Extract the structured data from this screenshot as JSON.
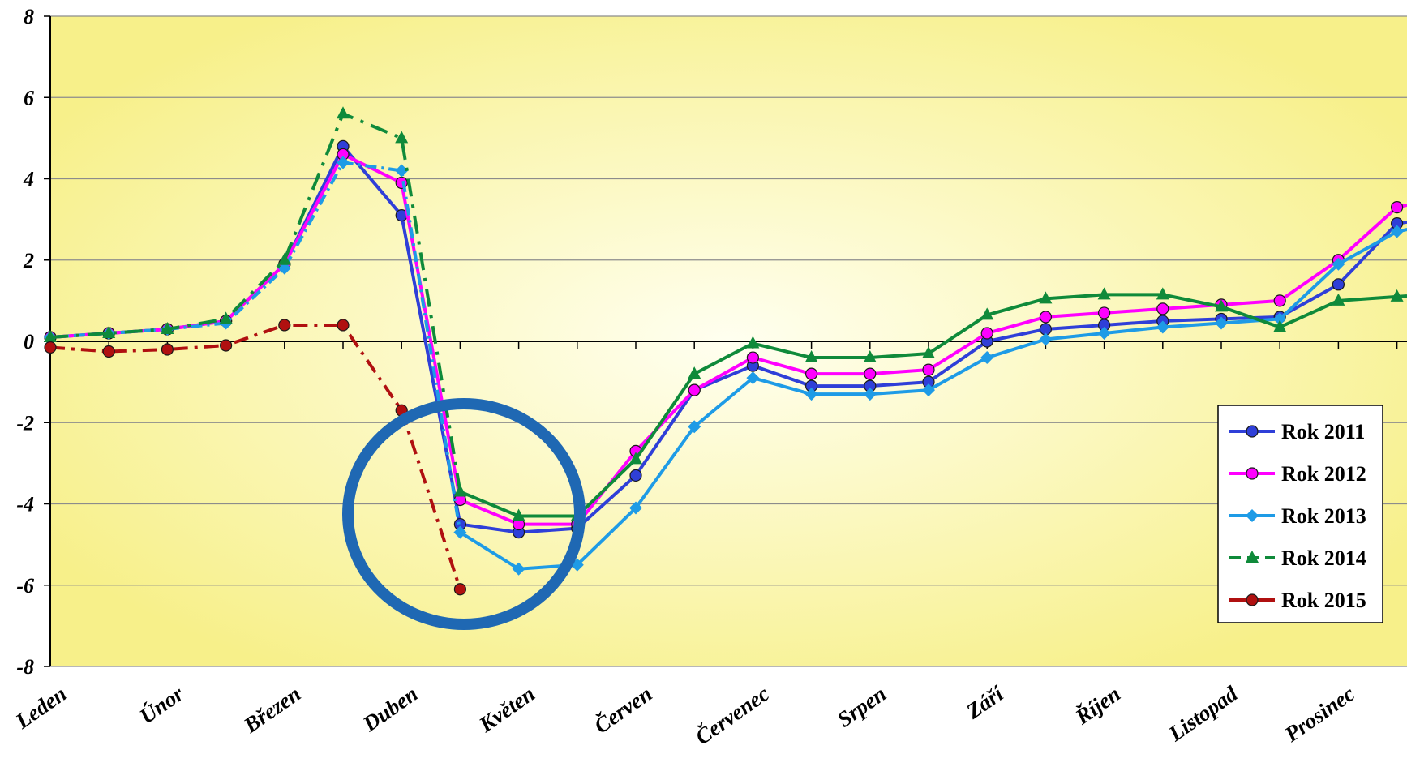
{
  "chart_data": {
    "type": "line",
    "x_ticks": [
      "Leden",
      "Únor",
      "Březen",
      "Duben",
      "Květen",
      "Červen",
      "Červenec",
      "Srpen",
      "Září",
      "Říjen",
      "Listopad",
      "Prosinec"
    ],
    "ylim": [
      -8,
      8
    ],
    "y_ticks": [
      "8",
      "6",
      "4",
      "2",
      "0",
      "-2",
      "-4",
      "-6",
      "-8"
    ],
    "y_tick_values": [
      8,
      6,
      4,
      2,
      0,
      -2,
      -4,
      -6,
      -8
    ],
    "grid": true,
    "legend_position": "right",
    "background": {
      "edge": "#f7f08a",
      "center": "#fffff0"
    },
    "series": [
      {
        "name": "Rok 2011",
        "color": "#2f3fd8",
        "marker": "circle",
        "dash": "solid",
        "values": [
          0.1,
          0.2,
          0.3,
          0.5,
          1.9,
          4.8,
          3.1,
          -4.5,
          -4.7,
          -4.6,
          -3.3,
          -1.2,
          -0.6,
          -1.1,
          -1.1,
          -1.0,
          0.0,
          0.3,
          0.4,
          0.5,
          0.55,
          0.6,
          1.4,
          2.9,
          3.1
        ]
      },
      {
        "name": "Rok 2012",
        "color": "#ff00ff",
        "marker": "circle",
        "dash": "solid",
        "values": [
          0.1,
          0.2,
          0.3,
          0.5,
          1.9,
          4.6,
          3.9,
          -3.9,
          -4.5,
          -4.5,
          -2.7,
          -1.2,
          -0.4,
          -0.8,
          -0.8,
          -0.7,
          0.2,
          0.6,
          0.7,
          0.8,
          0.9,
          1.0,
          2.0,
          3.3,
          3.6
        ]
      },
      {
        "name": "Rok 2013",
        "color": "#1e9be6",
        "marker": "diamond",
        "dash": "dashdot-solid",
        "values": [
          0.1,
          0.2,
          0.3,
          0.45,
          1.8,
          4.4,
          4.2,
          -4.7,
          -5.6,
          -5.5,
          -4.1,
          -2.1,
          -0.9,
          -1.3,
          -1.3,
          -1.2,
          -0.4,
          0.05,
          0.2,
          0.35,
          0.45,
          0.55,
          1.9,
          2.7,
          3.0
        ]
      },
      {
        "name": "Rok 2014",
        "color": "#0f8a3a",
        "marker": "triangle",
        "dash": "dash-solid",
        "values": [
          0.1,
          0.2,
          0.3,
          0.55,
          2.0,
          5.6,
          5.0,
          -3.7,
          -4.3,
          -4.3,
          -2.9,
          -0.8,
          -0.05,
          -0.4,
          -0.4,
          -0.3,
          0.65,
          1.05,
          1.15,
          1.15,
          0.85,
          0.35,
          1.0,
          1.1,
          1.2
        ]
      },
      {
        "name": "Rok 2015",
        "color": "#b01010",
        "marker": "circle",
        "dash": "dashdot",
        "values": [
          -0.15,
          -0.25,
          -0.2,
          -0.1,
          0.4,
          0.4,
          -1.7,
          -6.1,
          null,
          null,
          null,
          null,
          null,
          null,
          null,
          null,
          null,
          null,
          null,
          null,
          null,
          null,
          null,
          null,
          null
        ]
      }
    ],
    "annotation": {
      "shape": "ellipse",
      "color": "#1f68b3"
    }
  }
}
